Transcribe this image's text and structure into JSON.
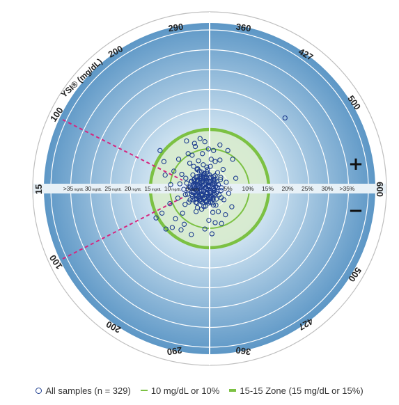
{
  "chart_data": {
    "type": "scatter",
    "title": "",
    "colors": {
      "points": "#1d3d8f",
      "zone_lines": "#7cc143",
      "zone_fill": "#d8ecc5",
      "background_dark": "#5f9ac8",
      "background_light": "#e8f3fb",
      "dashed_lines": "#d6267f"
    },
    "outer_ring_labels": {
      "title": "YSI® (mg/dL)",
      "left": [
        "100",
        "200",
        "290",
        "360",
        "427",
        "500",
        "600",
        "500",
        "427",
        "360",
        "290",
        "200",
        "100",
        "15"
      ],
      "axis_left": "15",
      "axis_right": "600"
    },
    "quadrant_signs": {
      "upper": "+",
      "lower": "−"
    },
    "x_axis": {
      "left_ticks": [
        ">35",
        "30",
        "25",
        "20",
        "15",
        "10",
        "5"
      ],
      "left_unit": "mg/dL",
      "right_ticks": [
        "5%",
        "10%",
        "15%",
        "20%",
        "25%",
        "30%",
        ">35%"
      ]
    },
    "zones": {
      "ten_line": "10 mg/dL or 10%",
      "fifteen_zone": "15-15 Zone (15 mg/dL or 15%)"
    },
    "series": [
      {
        "name": "All samples (n = 329)",
        "marker": "open-circle"
      }
    ],
    "points_note_count": 329,
    "sample_points": [
      [
        -1.0,
        0.3
      ],
      [
        -1.5,
        0.8
      ],
      [
        -2.0,
        -0.5
      ],
      [
        -0.5,
        -1.2
      ],
      [
        -2.5,
        1.5
      ],
      [
        -1.8,
        -1.8
      ],
      [
        -3.0,
        0.0
      ],
      [
        -0.8,
        2.0
      ],
      [
        -2.2,
        2.6
      ],
      [
        -3.5,
        1.0
      ],
      [
        -1.2,
        -2.5
      ],
      [
        -4.0,
        -0.8
      ],
      [
        -0.4,
        0.6
      ],
      [
        -2.8,
        -2.2
      ],
      [
        -1.6,
        3.0
      ],
      [
        -3.8,
        2.4
      ],
      [
        -0.9,
        -3.2
      ],
      [
        -4.5,
        1.8
      ],
      [
        -2.4,
        -3.0
      ],
      [
        -5.0,
        0.4
      ],
      [
        -1.4,
        3.8
      ],
      [
        -3.2,
        -3.6
      ],
      [
        -0.6,
        4.2
      ],
      [
        -5.5,
        -1.4
      ],
      [
        -2.6,
        4.4
      ],
      [
        -4.2,
        -2.8
      ],
      [
        -1.0,
        -4.4
      ],
      [
        -6.0,
        2.6
      ],
      [
        -3.0,
        5.0
      ],
      [
        -5.2,
        -3.4
      ],
      [
        -0.7,
        5.4
      ],
      [
        -6.5,
        -0.2
      ],
      [
        -2.0,
        -5.2
      ],
      [
        -7.0,
        3.6
      ],
      [
        -4.0,
        5.6
      ],
      [
        -6.2,
        -4.0
      ],
      [
        -1.6,
        6.0
      ],
      [
        -7.5,
        1.2
      ],
      [
        -3.4,
        -5.8
      ],
      [
        -8.0,
        -2.4
      ],
      [
        -5.0,
        6.4
      ],
      [
        -2.8,
        7.0
      ],
      [
        -9.0,
        4.4
      ],
      [
        -6.8,
        -6.2
      ],
      [
        -10.0,
        -3.8
      ],
      [
        -11.5,
        6.8
      ],
      [
        -12.5,
        9.6
      ],
      [
        -8.6,
        -7.6
      ],
      [
        -11.0,
        -10.2
      ],
      [
        -13.5,
        -7.4
      ],
      [
        -4.4,
        8.4
      ],
      [
        -1.8,
        8.8
      ],
      [
        -3.8,
        11.4
      ],
      [
        -6.4,
        -9.0
      ],
      [
        -1.2,
        -10.2
      ],
      [
        0.8,
        1.0
      ],
      [
        1.2,
        -0.6
      ],
      [
        0.4,
        -2.0
      ],
      [
        1.8,
        1.8
      ],
      [
        1.0,
        3.0
      ],
      [
        2.4,
        -1.6
      ],
      [
        0.6,
        -3.6
      ],
      [
        2.0,
        4.0
      ],
      [
        3.0,
        0.2
      ],
      [
        1.6,
        -4.2
      ],
      [
        2.8,
        2.8
      ],
      [
        0.2,
        5.6
      ],
      [
        3.6,
        -2.8
      ],
      [
        1.4,
        6.8
      ],
      [
        0.8,
        -6.0
      ],
      [
        2.2,
        -5.8
      ],
      [
        4.2,
        1.6
      ],
      [
        3.4,
        4.8
      ],
      [
        0.4,
        7.4
      ],
      [
        -0.2,
        -8.0
      ],
      [
        1.0,
        9.6
      ],
      [
        4.8,
        -1.2
      ],
      [
        2.6,
        7.2
      ],
      [
        -0.3,
        10.0
      ],
      [
        0.6,
        -11.4
      ],
      [
        -1.2,
        11.8
      ],
      [
        -2.4,
        12.6
      ],
      [
        -3.6,
        10.6
      ],
      [
        -5.8,
        12.0
      ],
      [
        -5.4,
        8.8
      ],
      [
        -7.8,
        7.4
      ],
      [
        -9.8,
        1.0
      ],
      [
        -7.2,
        -10.4
      ],
      [
        -4.6,
        -11.6
      ],
      [
        -9.4,
        -9.8
      ],
      [
        -12.0,
        -6.2
      ],
      [
        -11.2,
        3.4
      ],
      [
        4.6,
        9.6
      ],
      [
        5.8,
        7.4
      ],
      [
        2.6,
        11.0
      ],
      [
        4.0,
        -6.6
      ],
      [
        5.6,
        -4.6
      ],
      [
        1.4,
        -8.6
      ],
      [
        3.0,
        -8.8
      ],
      [
        6.6,
        2.6
      ],
      [
        19.0,
        17.8
      ]
    ]
  },
  "legend": {
    "all_samples": "All samples (n = 329)",
    "ten_line": "10 mg/dL or 10%",
    "fifteen_zone": "15-15 Zone (15 mg/dL or 15%)"
  }
}
